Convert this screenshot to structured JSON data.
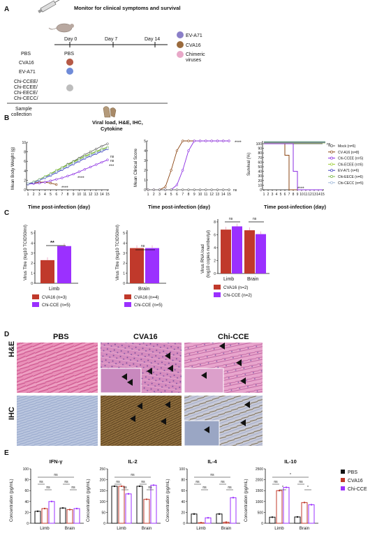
{
  "panel_labels": {
    "a": "A",
    "b": "B",
    "c": "C",
    "d": "D",
    "e": "E"
  },
  "timeline": {
    "monitor_text": "Monitor for clinical symptoms and survival",
    "days": [
      "Day 0",
      "Day 7",
      "Day 14"
    ],
    "groups": [
      "PBS",
      "CVA16",
      "EV-A71",
      "Chi-CCEE/",
      "Chi-ECEE/",
      "Chi-EECE/",
      "Chi-CECC/"
    ],
    "pbs_dose": "PBS",
    "sample_collection_1": "Sample",
    "sample_collection_2": "collection",
    "readout_1": "Viral load, H&E, IHC,",
    "readout_2": "Cytokine",
    "legend": [
      {
        "label": "EV-A71",
        "color": "#8a7fc8"
      },
      {
        "label": "CVA16",
        "color": "#9a6a3c"
      },
      {
        "label": "Chimeric",
        "color": "#e8a8c8"
      },
      {
        "label": "viruses",
        "color": ""
      }
    ]
  },
  "panel_b": {
    "weight_ylabel": "Mean Body Weight (g)",
    "score_ylabel": "Mean Clinical Score",
    "survival_ylabel": "Survival (%)",
    "xlabel": "Time post-infection (day)",
    "x_ticks": [
      "1",
      "2",
      "3",
      "4",
      "5",
      "6",
      "7",
      "8",
      "9",
      "10",
      "11",
      "12",
      "13",
      "14",
      "15"
    ],
    "weight_yticks": [
      "0",
      "2",
      "4",
      "6",
      "8",
      "10"
    ],
    "score_yticks": [
      "0",
      "1",
      "2",
      "3",
      "4",
      "5"
    ],
    "survival_yticks": [
      "0",
      "10",
      "20",
      "30",
      "40",
      "50",
      "60",
      "70",
      "80",
      "90",
      "100"
    ],
    "sig_ns": "ns",
    "sig_3": "***",
    "sig_4": "****",
    "legend": [
      {
        "label": "Mock (n=6)",
        "color": "#666666"
      },
      {
        "label": "CV-A16 (n=8)",
        "color": "#8b4513"
      },
      {
        "label": "Chi-CCEE (n=5)",
        "color": "#8a2be2"
      },
      {
        "label": "Chi-ECEE (n=6)",
        "color": "#9acd32"
      },
      {
        "label": "EV-A71 (n=6)",
        "color": "#4040c0"
      },
      {
        "label": "Chi-EECE (n=6)",
        "color": "#7ab648"
      },
      {
        "label": "Chi-CECC (n=5)",
        "color": "#9fb8d8"
      }
    ]
  },
  "chart_data": [
    {
      "type": "line",
      "title": "",
      "ylabel": "Mean Body Weight (g)",
      "xlabel": "Time post-infection (day)",
      "ylim": [
        0,
        10
      ],
      "x": [
        1,
        2,
        3,
        4,
        5,
        6,
        7,
        8,
        9,
        10,
        11,
        12,
        13,
        14,
        15
      ],
      "series": [
        {
          "name": "Mock (n=6)",
          "values": [
            1.3,
            1.6,
            2.1,
            2.7,
            3.3,
            4.0,
            4.7,
            5.4,
            6.0,
            6.7,
            7.4,
            8.0,
            8.6,
            9.2,
            9.7
          ]
        },
        {
          "name": "CV-A16 (n=8)",
          "values": [
            1.2,
            1.4,
            1.6,
            1.6,
            1.4,
            1.1,
            null,
            null,
            null,
            null,
            null,
            null,
            null,
            null,
            null
          ]
        },
        {
          "name": "Chi-CCEE (n=5)",
          "values": [
            1.2,
            1.3,
            1.4,
            1.6,
            1.9,
            2.2,
            2.5,
            2.9,
            3.3,
            3.8,
            4.3,
            4.8,
            5.3,
            5.8,
            6.3
          ]
        },
        {
          "name": "Chi-ECEE (n=6)",
          "values": [
            1.3,
            1.6,
            2.1,
            2.7,
            3.3,
            4.0,
            4.6,
            5.2,
            5.8,
            6.4,
            7.0,
            7.5,
            8.0,
            8.4,
            8.8
          ]
        },
        {
          "name": "EV-A71 (n=6)",
          "values": [
            1.2,
            1.5,
            2.0,
            2.5,
            3.0,
            3.6,
            4.2,
            4.8,
            5.4,
            6.0,
            6.6,
            7.1,
            7.6,
            8.1,
            8.6
          ]
        },
        {
          "name": "Chi-EECE (n=6)",
          "values": [
            1.3,
            1.7,
            2.2,
            2.8,
            3.4,
            4.1,
            4.7,
            5.3,
            5.9,
            6.5,
            7.1,
            7.6,
            8.1,
            8.6,
            9.0
          ]
        },
        {
          "name": "Chi-CECC (n=5)",
          "values": [
            1.3,
            1.6,
            2.1,
            2.6,
            3.2,
            3.8,
            4.4,
            5.0,
            5.6,
            6.2,
            6.8,
            7.3,
            7.8,
            8.3,
            8.7
          ]
        }
      ]
    },
    {
      "type": "line",
      "title": "",
      "ylabel": "Mean Clinical Score",
      "xlabel": "Time post-infection (day)",
      "ylim": [
        0,
        5
      ],
      "x": [
        1,
        2,
        3,
        4,
        5,
        6,
        7,
        8,
        9,
        10,
        11,
        12,
        13,
        14,
        15
      ],
      "series": [
        {
          "name": "CV-A16 (n=8)",
          "values": [
            0,
            0,
            0,
            0.3,
            2.0,
            4.0,
            5,
            5,
            5,
            5,
            5,
            5,
            5,
            5,
            5
          ]
        },
        {
          "name": "Chi-CCEE (n=5)",
          "values": [
            0,
            0,
            0,
            0,
            0,
            0.5,
            2.0,
            4.0,
            5,
            5,
            5,
            5,
            5,
            5,
            5
          ]
        },
        {
          "name": "Mock (n=6)",
          "values": [
            0,
            0,
            0,
            0,
            0,
            0,
            0,
            0,
            0,
            0,
            0,
            0,
            0,
            0,
            0
          ]
        }
      ]
    },
    {
      "type": "line",
      "title": "",
      "ylabel": "Survival (%)",
      "xlabel": "Time post-infection (day)",
      "ylim": [
        0,
        100
      ],
      "x": [
        1,
        2,
        3,
        4,
        5,
        6,
        7,
        8,
        9,
        10,
        11,
        12,
        13,
        14,
        15
      ],
      "series": [
        {
          "name": "Mock (n=6)",
          "values": [
            100,
            100,
            100,
            100,
            100,
            100,
            100,
            100,
            100,
            100,
            100,
            100,
            100,
            100,
            100
          ]
        },
        {
          "name": "CV-A16 (n=8)",
          "values": [
            100,
            100,
            100,
            100,
            100,
            75,
            0,
            0,
            0,
            0,
            0,
            0,
            0,
            0,
            0
          ]
        },
        {
          "name": "Chi-CCEE (n=5)",
          "values": [
            100,
            100,
            100,
            100,
            100,
            100,
            100,
            40,
            0,
            0,
            0,
            0,
            0,
            0,
            0
          ]
        }
      ]
    },
    {
      "type": "bar",
      "ylabel": "Virus Titre (log10 TCID50/ml)",
      "categories": [
        "Limb"
      ],
      "ylim": [
        0,
        5
      ],
      "series": [
        {
          "name": "CVA16 (n=3)",
          "values": [
            2.3
          ]
        },
        {
          "name": "Chi-CCE (n=5)",
          "values": [
            3.7
          ]
        }
      ],
      "annotation": "**"
    },
    {
      "type": "bar",
      "ylabel": "Virus Titre (log10 TCID50/ml)",
      "categories": [
        "Brain"
      ],
      "ylim": [
        0,
        5
      ],
      "series": [
        {
          "name": "CVA16 (n=4)",
          "values": [
            3.5
          ]
        },
        {
          "name": "Chi-CCE (n=5)",
          "values": [
            3.5
          ]
        }
      ],
      "annotation": "ns"
    },
    {
      "type": "bar",
      "ylabel": "Virus RNA load (log10 copies number/µl)",
      "categories": [
        "Limb",
        "Brain"
      ],
      "ylim": [
        0,
        8
      ],
      "series": [
        {
          "name": "CVA16 (n=2)",
          "values": [
            6.8,
            6.7
          ]
        },
        {
          "name": "Chi-CCE (n=2)",
          "values": [
            7.3,
            6.1
          ]
        }
      ],
      "annotation": "ns"
    },
    {
      "type": "bar",
      "title": "IFN-γ",
      "ylabel": "Concentration (pg/mL)",
      "categories": [
        "Limb",
        "Brain"
      ],
      "ylim": [
        0,
        100
      ],
      "series": [
        {
          "name": "PBS",
          "values": [
            22,
            28
          ]
        },
        {
          "name": "CVA16",
          "values": [
            27,
            25
          ]
        },
        {
          "name": "Chi-CCE",
          "values": [
            40,
            27
          ]
        }
      ]
    },
    {
      "type": "bar",
      "title": "IL-2",
      "ylabel": "Concentration (pg/mL)",
      "categories": [
        "Limb",
        "Brain"
      ],
      "ylim": [
        0,
        250
      ],
      "series": [
        {
          "name": "PBS",
          "values": [
            170,
            170
          ]
        },
        {
          "name": "CVA16",
          "values": [
            170,
            110
          ]
        },
        {
          "name": "Chi-CCE",
          "values": [
            135,
            175
          ]
        }
      ]
    },
    {
      "type": "bar",
      "title": "IL-4",
      "ylabel": "Concentration (pg/mL)",
      "categories": [
        "Limb",
        "Brain"
      ],
      "ylim": [
        0,
        100
      ],
      "series": [
        {
          "name": "PBS",
          "values": [
            17,
            17
          ]
        },
        {
          "name": "CVA16",
          "values": [
            1,
            2
          ]
        },
        {
          "name": "Chi-CCE",
          "values": [
            10,
            47
          ]
        }
      ]
    },
    {
      "type": "bar",
      "title": "IL-10",
      "ylabel": "Concentration (pg/mL)",
      "categories": [
        "Limb",
        "Brain"
      ],
      "ylim": [
        0,
        2500
      ],
      "series": [
        {
          "name": "PBS",
          "values": [
            280,
            290
          ]
        },
        {
          "name": "CVA16",
          "values": [
            1500,
            950
          ]
        },
        {
          "name": "Chi-CCE",
          "values": [
            1650,
            850
          ]
        }
      ]
    }
  ],
  "panel_c": {
    "c1_ylabel": "Virus Titre (log10 TCID50/ml)",
    "c1_cat": "Limb",
    "c1_sig": "**",
    "c1_legend": [
      "CVA16 (n=3)",
      "Chi-CCE (n=5)"
    ],
    "c1_yticks": [
      "0",
      "1",
      "2",
      "3",
      "4",
      "5"
    ],
    "c2_ylabel": "Virus Titre (log10 TCID50/ml)",
    "c2_cat": "Brain",
    "c2_sig": "ns",
    "c2_legend": [
      "CVA16 (n=4)",
      "Chi-CCE (n=5)"
    ],
    "c2_yticks": [
      "0",
      "1",
      "2",
      "3",
      "4",
      "5"
    ],
    "c3_ylabel_1": "Virus RNA load",
    "c3_ylabel_2": "(log10 copies number/µl)",
    "c3_cats": [
      "Limb",
      "Brain"
    ],
    "c3_sig": "ns",
    "c3_legend": [
      "CVA16 (n=2)",
      "Chi-CCE (n=2)"
    ],
    "c3_yticks": [
      "0",
      "2",
      "4",
      "6",
      "8"
    ],
    "color_cva16": "#c0392b",
    "color_chi": "#9b30ff"
  },
  "panel_d": {
    "columns": [
      "PBS",
      "CVA16",
      "Chi-CCE"
    ],
    "rows": [
      "H&E",
      "IHC"
    ]
  },
  "panel_e": {
    "titles": [
      "IFN-γ",
      "IL-2",
      "IL-4",
      "IL-10"
    ],
    "ylabel": "Concentration (pg/mL)",
    "cats": [
      "Limb",
      "Brain"
    ],
    "legend": [
      "PBS",
      "CVA16",
      "Chi-CCE"
    ],
    "yticks": [
      [
        "0",
        "20",
        "40",
        "60",
        "80",
        "100"
      ],
      [
        "0",
        "50",
        "100",
        "150",
        "200",
        "250"
      ],
      [
        "0",
        "20",
        "40",
        "60",
        "80",
        "100"
      ],
      [
        "0",
        "500",
        "1000",
        "1500",
        "2000",
        "2500"
      ]
    ],
    "sig_ns": "ns",
    "sig_star": "*"
  }
}
